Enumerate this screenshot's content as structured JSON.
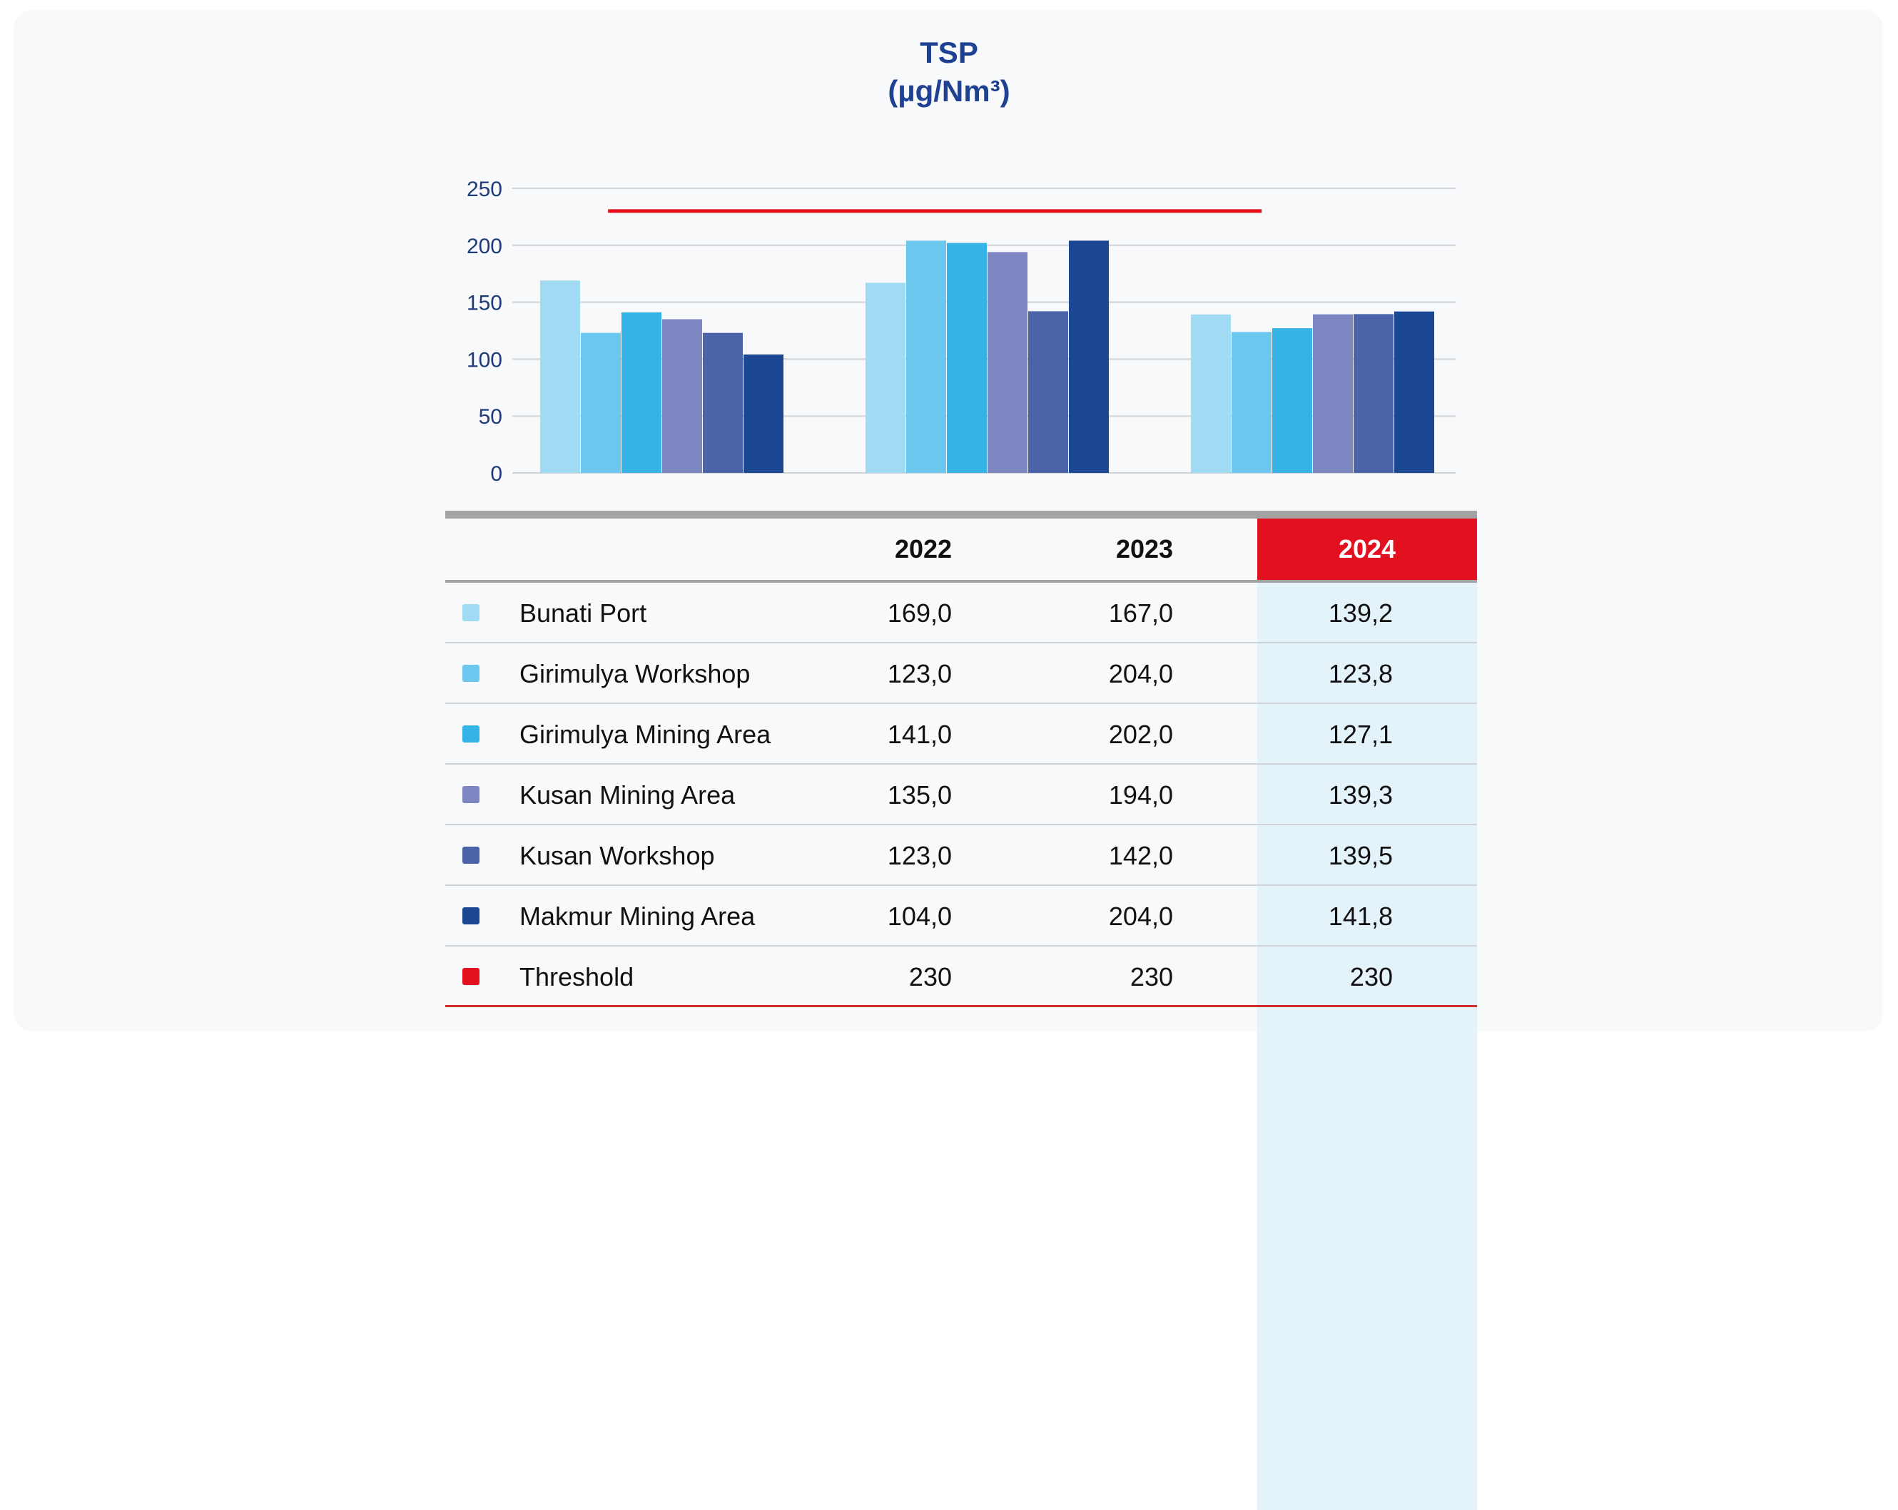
{
  "title_line1": "TSP",
  "title_line2": "(µg/Nm³)",
  "table": {
    "headers": [
      "2022",
      "2023",
      "2024"
    ],
    "rows": [
      {
        "label": "Bunati Port",
        "values": [
          "169,0",
          "167,0",
          "139,2"
        ],
        "color": "#a1dbf3"
      },
      {
        "label": "Girimulya Workshop",
        "values": [
          "123,0",
          "204,0",
          "123,8"
        ],
        "color": "#6bc7ee"
      },
      {
        "label": "Girimulya Mining Area",
        "values": [
          "141,0",
          "202,0",
          "127,1"
        ],
        "color": "#35b2e6"
      },
      {
        "label": "Kusan Mining Area",
        "values": [
          "135,0",
          "194,0",
          "139,3"
        ],
        "color": "#7d86c0"
      },
      {
        "label": "Kusan Workshop",
        "values": [
          "123,0",
          "142,0",
          "139,5"
        ],
        "color": "#4b64a9"
      },
      {
        "label": "Makmur Mining Area",
        "values": [
          "104,0",
          "204,0",
          "141,8"
        ],
        "color": "#1c4793"
      },
      {
        "label": "Threshold",
        "values": [
          "230",
          "230",
          "230"
        ],
        "color": "#e3101d"
      }
    ]
  },
  "chart_data": {
    "type": "bar",
    "categories": [
      "2022",
      "2023",
      "2024"
    ],
    "yticks": [
      0,
      50,
      100,
      150,
      200,
      250
    ],
    "ylim": [
      0,
      250
    ],
    "grid": true,
    "series": [
      {
        "name": "Bunati Port",
        "values": [
          169.0,
          167.0,
          139.2
        ],
        "color": "#a1dbf3"
      },
      {
        "name": "Girimulya Workshop",
        "values": [
          123.0,
          204.0,
          123.8
        ],
        "color": "#6bc7ee"
      },
      {
        "name": "Girimulya Mining Area",
        "values": [
          141.0,
          202.0,
          127.1
        ],
        "color": "#35b2e6"
      },
      {
        "name": "Kusan Mining Area",
        "values": [
          135.0,
          194.0,
          139.3
        ],
        "color": "#7d86c0"
      },
      {
        "name": "Kusan Workshop",
        "values": [
          123.0,
          142.0,
          139.5
        ],
        "color": "#4b64a9"
      },
      {
        "name": "Makmur Mining Area",
        "values": [
          104.0,
          204.0,
          141.8
        ],
        "color": "#1c4793"
      }
    ],
    "threshold": {
      "name": "Threshold",
      "value": 230,
      "color": "#e3101d"
    }
  }
}
